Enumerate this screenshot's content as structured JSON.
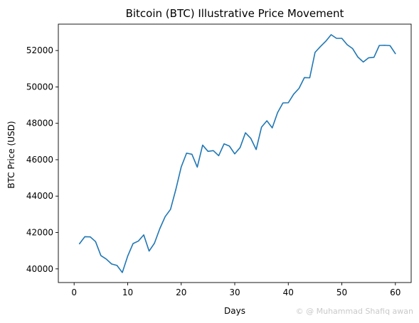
{
  "chart_data": {
    "type": "line",
    "title": "Bitcoin (BTC) Illustrative Price Movement",
    "xlabel": "Days",
    "ylabel": "BTC Price (USD)",
    "xlim": [
      -2.95,
      62.95
    ],
    "ylim": [
      39250,
      53450
    ],
    "xticks": [
      0,
      10,
      20,
      30,
      40,
      50,
      60
    ],
    "yticks": [
      40000,
      42000,
      44000,
      46000,
      48000,
      50000,
      52000
    ],
    "grid": false,
    "series": [
      {
        "color": "#1f77b4",
        "x": [
          1,
          2,
          3,
          4,
          5,
          6,
          7,
          8,
          9,
          10,
          11,
          12,
          13,
          14,
          15,
          16,
          17,
          18,
          19,
          20,
          21,
          22,
          23,
          24,
          25,
          26,
          27,
          28,
          29,
          30,
          31,
          32,
          33,
          34,
          35,
          36,
          37,
          38,
          39,
          40,
          41,
          42,
          43,
          44,
          45,
          46,
          47,
          48,
          49,
          50,
          51,
          52,
          53,
          54,
          55,
          56,
          57,
          58,
          59,
          60
        ],
        "y": [
          41380,
          41770,
          41760,
          41500,
          40730,
          40540,
          40270,
          40190,
          39800,
          40700,
          41390,
          41530,
          41870,
          40980,
          41410,
          42210,
          42870,
          43270,
          44370,
          45600,
          46360,
          46300,
          45590,
          46800,
          46460,
          46500,
          46220,
          46870,
          46750,
          46320,
          46670,
          47480,
          47170,
          46560,
          47790,
          48140,
          47750,
          48590,
          49120,
          49130,
          49600,
          49920,
          50510,
          50500,
          51900,
          52220,
          52510,
          52870,
          52670,
          52670,
          52320,
          52110,
          51640,
          51370,
          51600,
          51630,
          52280,
          52290,
          52270,
          51830
        ]
      }
    ]
  },
  "watermark": "© @ Muhammad Shafiq awan"
}
